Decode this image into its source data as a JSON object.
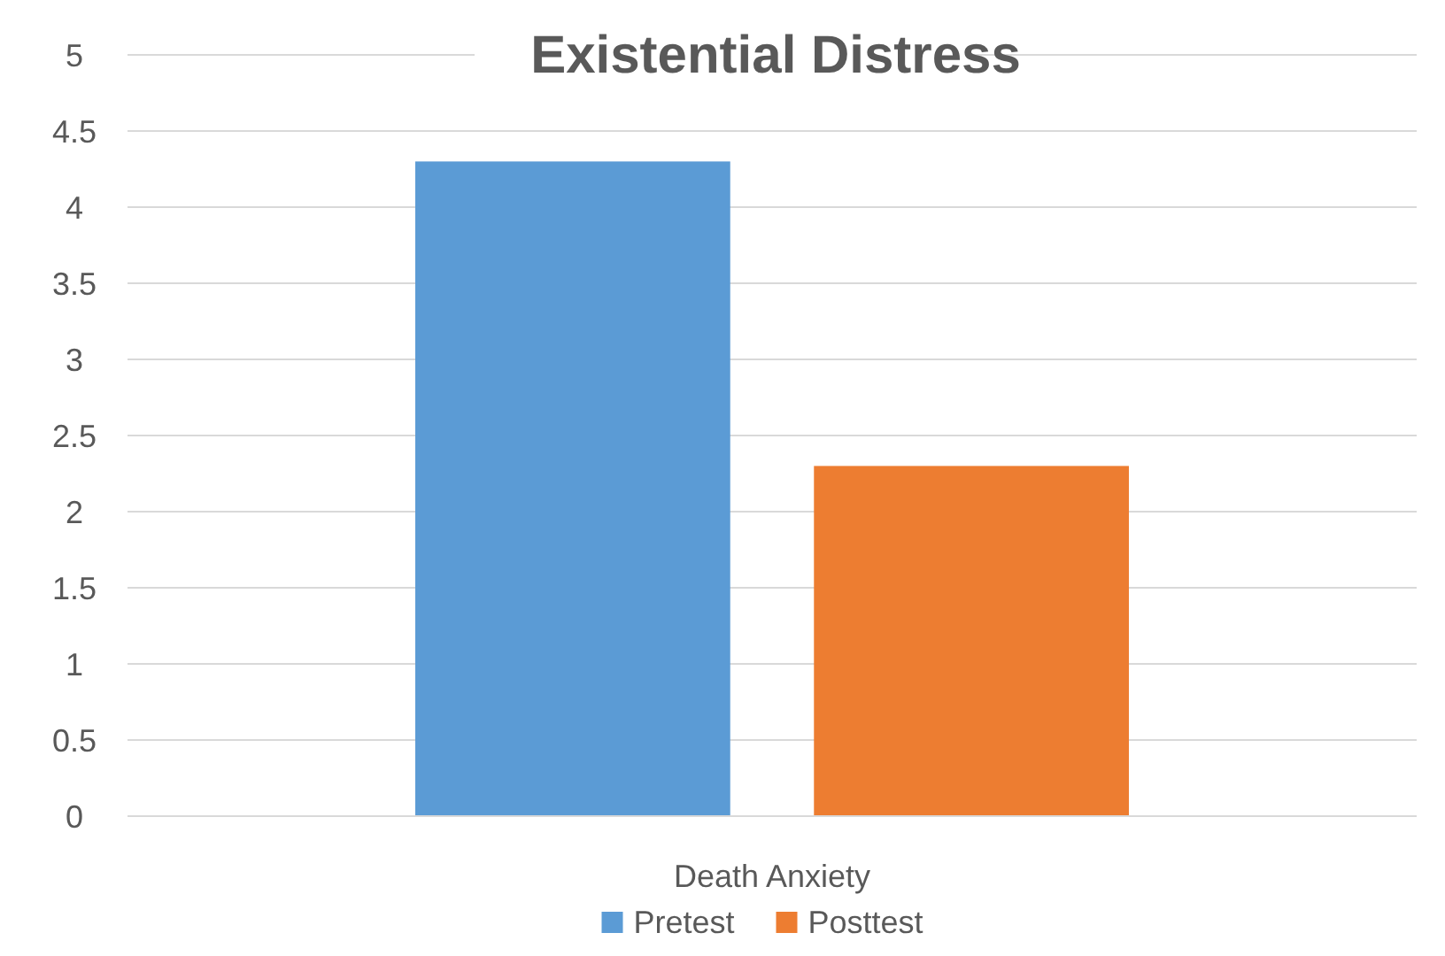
{
  "chart_data": {
    "type": "bar",
    "title": "Existential Distress",
    "categories": [
      "Death Anxiety"
    ],
    "series": [
      {
        "name": "Pretest",
        "color": "#5b9bd5",
        "values": [
          4.3
        ]
      },
      {
        "name": "Posttest",
        "color": "#ed7d31",
        "values": [
          2.3
        ]
      }
    ],
    "ylim": [
      0,
      5
    ],
    "yticks": [
      0,
      0.5,
      1,
      1.5,
      2,
      2.5,
      3,
      3.5,
      4,
      4.5,
      5
    ],
    "grid": "y",
    "legend": "bottom"
  }
}
